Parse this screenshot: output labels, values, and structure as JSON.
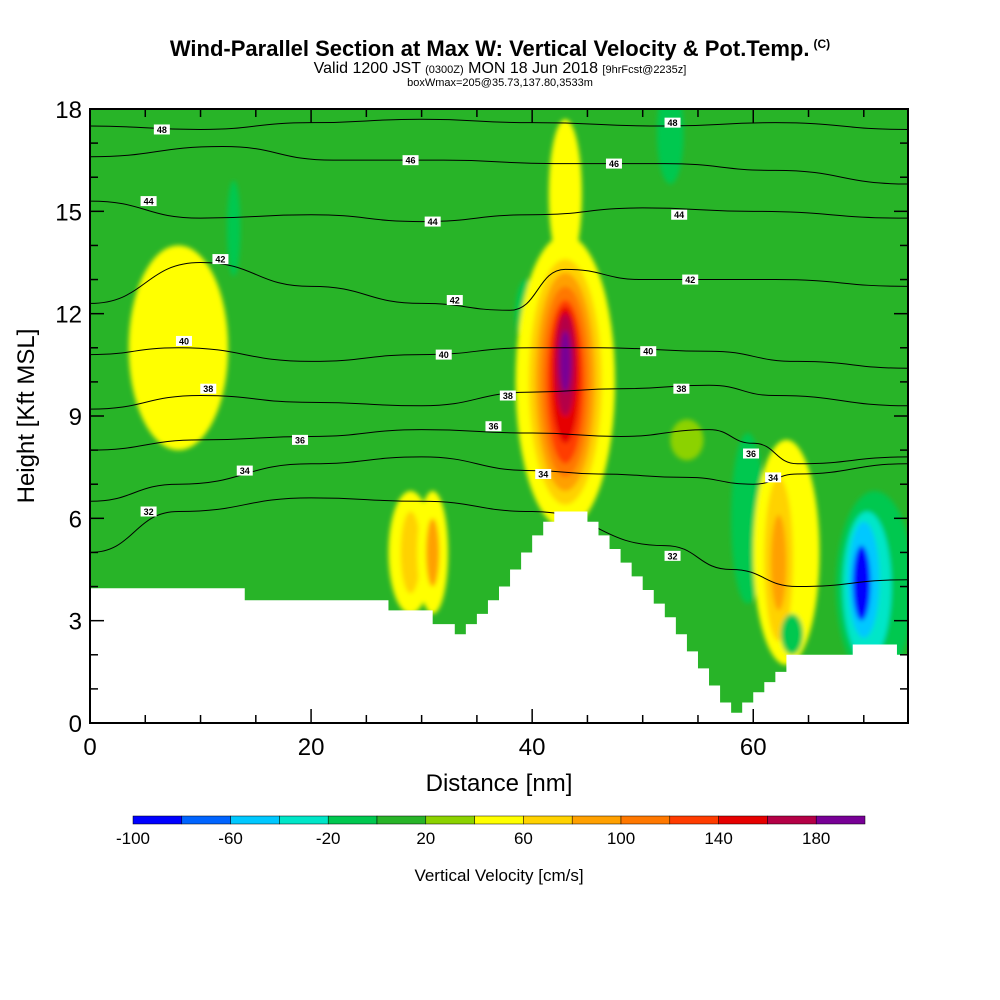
{
  "header": {
    "title": "Wind-Parallel Section at Max W: Vertical Velocity & Pot.Temp.",
    "copyright": "(C)",
    "valid_prefix": "Valid 1200 JST",
    "valid_z": "(0300Z)",
    "valid_date": "MON 18 Jun 2018",
    "fcst": "[9hrFcst@2235z]",
    "subsub": "boxWmax=205@35.73,137.80,3533m"
  },
  "chart_data": {
    "type": "heatmap",
    "title": "Wind-Parallel Section at Max W: Vertical Velocity & Pot.Temp.",
    "xlabel": "Distance [nm]",
    "ylabel": "Height [Kft MSL]",
    "xlim": [
      0,
      74
    ],
    "ylim": [
      0,
      18
    ],
    "x_ticks": [
      0,
      20,
      40,
      60
    ],
    "y_ticks": [
      0,
      3,
      6,
      9,
      12,
      15,
      18
    ],
    "colorbar": {
      "label": "Vertical Velocity [cm/s]",
      "tick_values": [
        -100,
        -60,
        -20,
        20,
        60,
        100,
        140,
        180
      ],
      "range": [
        -100,
        200
      ],
      "colors": [
        "#0000ff",
        "#0064ff",
        "#00c8ff",
        "#00e6c8",
        "#00c850",
        "#28b428",
        "#8cd200",
        "#ffff00",
        "#ffd200",
        "#ffa000",
        "#ff7800",
        "#ff3c00",
        "#e60000",
        "#b40046",
        "#780096"
      ]
    },
    "terrain": [
      [
        0,
        3.95
      ],
      [
        4.5,
        3.95
      ],
      [
        4.5,
        3.95
      ],
      [
        14,
        3.95
      ],
      [
        14,
        3.6
      ],
      [
        27,
        3.6
      ],
      [
        27,
        3.3
      ],
      [
        31,
        3.3
      ],
      [
        31,
        2.9
      ],
      [
        33,
        2.9
      ],
      [
        33,
        2.6
      ],
      [
        34,
        2.6
      ],
      [
        34,
        2.9
      ],
      [
        35,
        2.9
      ],
      [
        35,
        3.2
      ],
      [
        36,
        3.2
      ],
      [
        36,
        3.6
      ],
      [
        37,
        3.6
      ],
      [
        37,
        4.0
      ],
      [
        38,
        4.0
      ],
      [
        38,
        4.5
      ],
      [
        39,
        4.5
      ],
      [
        39,
        5.0
      ],
      [
        40,
        5.0
      ],
      [
        40,
        5.5
      ],
      [
        41,
        5.5
      ],
      [
        41,
        5.9
      ],
      [
        42,
        5.9
      ],
      [
        42,
        6.2
      ],
      [
        45,
        6.2
      ],
      [
        45,
        5.9
      ],
      [
        46,
        5.9
      ],
      [
        46,
        5.5
      ],
      [
        47,
        5.5
      ],
      [
        47,
        5.1
      ],
      [
        48,
        5.1
      ],
      [
        48,
        4.7
      ],
      [
        49,
        4.7
      ],
      [
        49,
        4.3
      ],
      [
        50,
        4.3
      ],
      [
        50,
        3.9
      ],
      [
        51,
        3.9
      ],
      [
        51,
        3.5
      ],
      [
        52,
        3.5
      ],
      [
        52,
        3.1
      ],
      [
        53,
        3.1
      ],
      [
        53,
        2.6
      ],
      [
        54,
        2.6
      ],
      [
        54,
        2.1
      ],
      [
        55,
        2.1
      ],
      [
        55,
        1.6
      ],
      [
        56,
        1.6
      ],
      [
        56,
        1.1
      ],
      [
        57,
        1.1
      ],
      [
        57,
        0.6
      ],
      [
        58,
        0.6
      ],
      [
        58,
        0.3
      ],
      [
        59,
        0.3
      ],
      [
        59,
        0.6
      ],
      [
        60,
        0.6
      ],
      [
        60,
        0.9
      ],
      [
        61,
        0.9
      ],
      [
        61,
        1.2
      ],
      [
        62,
        1.2
      ],
      [
        62,
        1.5
      ],
      [
        63,
        1.5
      ],
      [
        63,
        2.0
      ],
      [
        69,
        2.0
      ],
      [
        69,
        2.3
      ],
      [
        73,
        2.3
      ],
      [
        73,
        2.0
      ],
      [
        74,
        2.0
      ]
    ],
    "cells": [
      {
        "x": 8,
        "y": 11,
        "rx": 4.5,
        "ry": 3,
        "v": 40
      },
      {
        "x": 8,
        "y": 11,
        "rx": 2,
        "ry": 1.3,
        "v": 55
      },
      {
        "x": 13,
        "y": 14.5,
        "rx": 0.6,
        "ry": 1.4,
        "v": -20
      },
      {
        "x": 29,
        "y": 5,
        "rx": 2,
        "ry": 1.8,
        "v": 40
      },
      {
        "x": 29,
        "y": 5,
        "rx": 0.9,
        "ry": 1.2,
        "v": 60
      },
      {
        "x": 31,
        "y": 5,
        "rx": 1.4,
        "ry": 1.8,
        "v": 50
      },
      {
        "x": 31,
        "y": 5,
        "rx": 0.6,
        "ry": 1,
        "v": 80
      },
      {
        "x": 39.5,
        "y": 12,
        "rx": 1,
        "ry": 1,
        "v": -20
      },
      {
        "x": 43,
        "y": 15.5,
        "rx": 1.5,
        "ry": 2.2,
        "v": 40
      },
      {
        "x": 52.5,
        "y": 17.3,
        "rx": 1.2,
        "ry": 1.5,
        "v": -20
      },
      {
        "x": 54,
        "y": 8.3,
        "rx": 1.5,
        "ry": 0.6,
        "v": 30
      },
      {
        "x": 43,
        "y": 10,
        "rx": 4.5,
        "ry": 4.3,
        "v": 40
      },
      {
        "x": 43,
        "y": 10,
        "rx": 3.3,
        "ry": 3.6,
        "v": 60
      },
      {
        "x": 43,
        "y": 10,
        "rx": 2.7,
        "ry": 3.2,
        "v": 80
      },
      {
        "x": 43,
        "y": 10,
        "rx": 2.2,
        "ry": 2.8,
        "v": 100
      },
      {
        "x": 43,
        "y": 10,
        "rx": 1.7,
        "ry": 2.4,
        "v": 120
      },
      {
        "x": 43,
        "y": 10.2,
        "rx": 1.3,
        "ry": 2.0,
        "v": 140
      },
      {
        "x": 43,
        "y": 10.5,
        "rx": 0.9,
        "ry": 1.5,
        "v": 160
      },
      {
        "x": 43,
        "y": 10.6,
        "rx": 0.5,
        "ry": 0.9,
        "v": 190
      },
      {
        "x": 59.5,
        "y": 6,
        "rx": 1.5,
        "ry": 2.5,
        "v": -20
      },
      {
        "x": 63,
        "y": 5,
        "rx": 3,
        "ry": 3.3,
        "v": 40
      },
      {
        "x": 62.3,
        "y": 4.8,
        "rx": 1.3,
        "ry": 2.4,
        "v": 60
      },
      {
        "x": 62.3,
        "y": 4.7,
        "rx": 0.7,
        "ry": 1.4,
        "v": 90
      },
      {
        "x": 63.5,
        "y": 2.6,
        "rx": 1,
        "ry": 0.6,
        "v": -20
      },
      {
        "x": 71,
        "y": 4,
        "rx": 3.5,
        "ry": 2.8,
        "v": -20
      },
      {
        "x": 70.3,
        "y": 4,
        "rx": 2.2,
        "ry": 2.2,
        "v": -40
      },
      {
        "x": 70,
        "y": 4.2,
        "rx": 1.4,
        "ry": 1.7,
        "v": -60
      },
      {
        "x": 69.8,
        "y": 4.1,
        "rx": 0.8,
        "ry": 1.1,
        "v": -85
      }
    ],
    "isentropes": [
      {
        "level": 32,
        "pts": [
          [
            0,
            5
          ],
          [
            8,
            6.2
          ],
          [
            20,
            6.6
          ],
          [
            30,
            6.5
          ],
          [
            40,
            6.2
          ],
          [
            52,
            5.2
          ],
          [
            58,
            4.5
          ],
          [
            64,
            4
          ],
          [
            74,
            4.2
          ]
        ]
      },
      {
        "level": 34,
        "pts": [
          [
            0,
            6.5
          ],
          [
            8,
            7
          ],
          [
            20,
            7.6
          ],
          [
            30,
            7.8
          ],
          [
            40,
            7.4
          ],
          [
            46,
            7.3
          ],
          [
            54,
            7.2
          ],
          [
            60,
            7
          ],
          [
            64,
            7.3
          ],
          [
            74,
            7.6
          ]
        ]
      },
      {
        "level": 36,
        "pts": [
          [
            0,
            8
          ],
          [
            10,
            8.3
          ],
          [
            20,
            8.4
          ],
          [
            30,
            8.6
          ],
          [
            40,
            8.5
          ],
          [
            48,
            8.4
          ],
          [
            56,
            8.6
          ],
          [
            60,
            8.2
          ],
          [
            64,
            7.6
          ],
          [
            74,
            7.8
          ]
        ]
      },
      {
        "level": 38,
        "pts": [
          [
            0,
            9.2
          ],
          [
            10,
            9.6
          ],
          [
            20,
            9.4
          ],
          [
            30,
            9.3
          ],
          [
            40,
            9.7
          ],
          [
            48,
            9.8
          ],
          [
            56,
            9.9
          ],
          [
            62,
            9.6
          ],
          [
            74,
            9.3
          ]
        ]
      },
      {
        "level": 40,
        "pts": [
          [
            0,
            10.8
          ],
          [
            8,
            11
          ],
          [
            20,
            10.6
          ],
          [
            30,
            10.8
          ],
          [
            40,
            11
          ],
          [
            46,
            11
          ],
          [
            56,
            10.9
          ],
          [
            64,
            10.6
          ],
          [
            74,
            10.4
          ]
        ]
      },
      {
        "level": 42,
        "pts": [
          [
            0,
            12.3
          ],
          [
            10,
            13.5
          ],
          [
            20,
            12.8
          ],
          [
            30,
            12.3
          ],
          [
            38,
            12.1
          ],
          [
            43,
            13.3
          ],
          [
            50,
            13
          ],
          [
            62,
            13
          ],
          [
            74,
            12.8
          ]
        ]
      },
      {
        "level": 44,
        "pts": [
          [
            0,
            15.3
          ],
          [
            10,
            14.8
          ],
          [
            20,
            14.9
          ],
          [
            30,
            14.7
          ],
          [
            40,
            14.9
          ],
          [
            50,
            15.1
          ],
          [
            60,
            15
          ],
          [
            74,
            14.8
          ]
        ]
      },
      {
        "level": 46,
        "pts": [
          [
            0,
            16.6
          ],
          [
            12,
            16.9
          ],
          [
            22,
            16.5
          ],
          [
            32,
            16.5
          ],
          [
            42,
            16.4
          ],
          [
            52,
            16.4
          ],
          [
            62,
            16.2
          ],
          [
            74,
            15.8
          ]
        ]
      },
      {
        "level": 48,
        "pts": [
          [
            0,
            17.5
          ],
          [
            10,
            17.4
          ],
          [
            20,
            17.6
          ],
          [
            30,
            17.7
          ],
          [
            40,
            17.6
          ],
          [
            52,
            17.5
          ],
          [
            62,
            17.6
          ],
          [
            74,
            17.4
          ]
        ]
      }
    ],
    "contour_labels": [
      {
        "text": "32",
        "x": 5.3,
        "y": 6.2
      },
      {
        "text": "32",
        "x": 52.7,
        "y": 4.9
      },
      {
        "text": "34",
        "x": 14,
        "y": 7.4
      },
      {
        "text": "34",
        "x": 41,
        "y": 7.3
      },
      {
        "text": "34",
        "x": 61.8,
        "y": 7.2
      },
      {
        "text": "36",
        "x": 19,
        "y": 8.3
      },
      {
        "text": "36",
        "x": 36.5,
        "y": 8.7
      },
      {
        "text": "36",
        "x": 59.8,
        "y": 7.9
      },
      {
        "text": "38",
        "x": 10.7,
        "y": 9.8
      },
      {
        "text": "38",
        "x": 37.8,
        "y": 9.6
      },
      {
        "text": "38",
        "x": 53.5,
        "y": 9.8
      },
      {
        "text": "40",
        "x": 8.5,
        "y": 11.2
      },
      {
        "text": "40",
        "x": 32,
        "y": 10.8
      },
      {
        "text": "40",
        "x": 50.5,
        "y": 10.9
      },
      {
        "text": "42",
        "x": 11.8,
        "y": 13.6
      },
      {
        "text": "42",
        "x": 33,
        "y": 12.4
      },
      {
        "text": "42",
        "x": 54.3,
        "y": 13.0
      },
      {
        "text": "44",
        "x": 5.3,
        "y": 15.3
      },
      {
        "text": "44",
        "x": 31,
        "y": 14.7
      },
      {
        "text": "44",
        "x": 53.3,
        "y": 14.9
      },
      {
        "text": "46",
        "x": 29,
        "y": 16.5
      },
      {
        "text": "46",
        "x": 47.4,
        "y": 16.4
      },
      {
        "text": "48",
        "x": 6.5,
        "y": 17.4
      },
      {
        "text": "48",
        "x": 52.7,
        "y": 17.6
      }
    ]
  }
}
